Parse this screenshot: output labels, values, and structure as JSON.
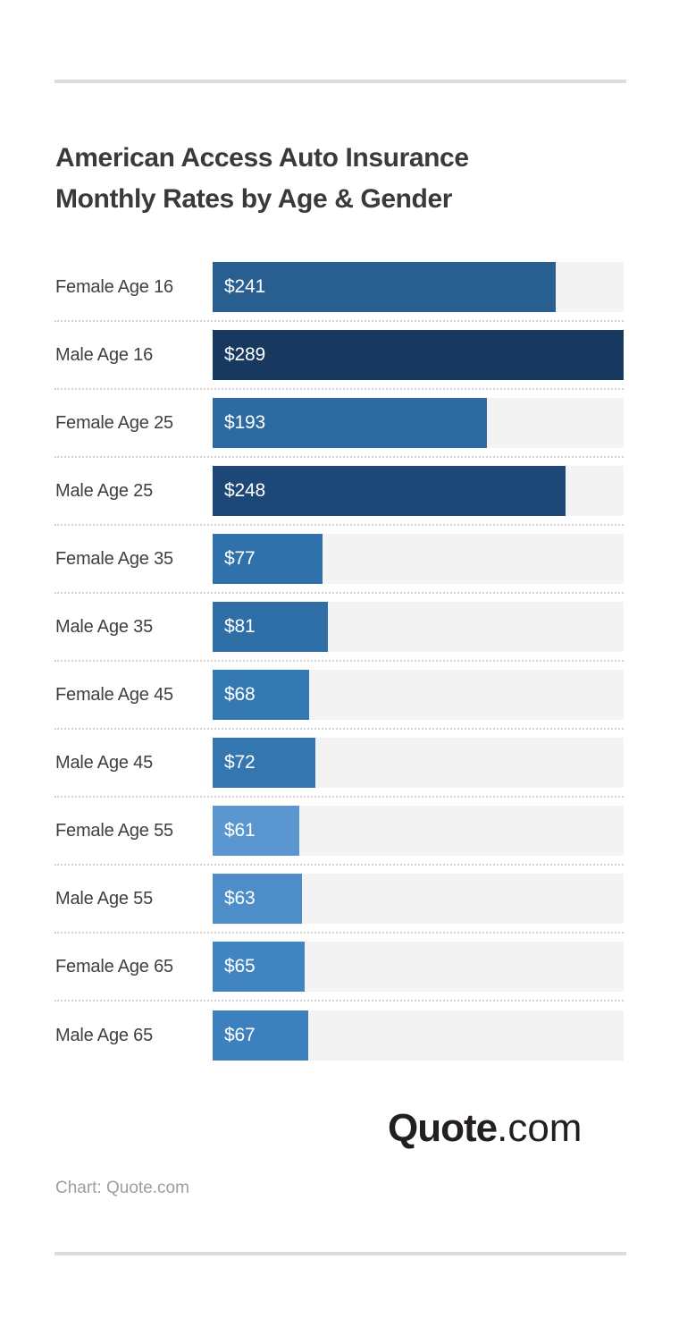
{
  "page": {
    "background": "#ffffff"
  },
  "header": {
    "title_line1": "American Access Auto Insurance",
    "title_line2": "Monthly Rates by Age & Gender",
    "title_color": "#3a3a3a",
    "divider_color": "#dcdcdc"
  },
  "chart_data": {
    "type": "bar",
    "orientation": "horizontal",
    "title": "American Access Auto Insurance Monthly Rates by Age & Gender",
    "categories": [
      "Female Age 16",
      "Male Age 16",
      "Female Age 25",
      "Male Age 25",
      "Female Age 35",
      "Male Age 35",
      "Female Age 45",
      "Male Age 45",
      "Female Age 55",
      "Male Age 55",
      "Female Age 65",
      "Male Age 65"
    ],
    "values": [
      241,
      289,
      193,
      248,
      77,
      81,
      68,
      72,
      61,
      63,
      65,
      67
    ],
    "value_labels": [
      "$241",
      "$289",
      "$193",
      "$248",
      "$77",
      "$81",
      "$68",
      "$72",
      "$61",
      "$63",
      "$65",
      "$67"
    ],
    "bar_colors": [
      "#295e91",
      "#17385f",
      "#2c6aa2",
      "#1d4777",
      "#2f72ab",
      "#2e6fa8",
      "#3579b3",
      "#3376b0",
      "#5a97d0",
      "#4d8dc8",
      "#4085c2",
      "#3c81bd"
    ],
    "xlabel": "",
    "ylabel": "",
    "xlim": [
      0,
      289
    ],
    "grid": false,
    "legend": false,
    "track_color": "#f3f3f3",
    "separator_color": "#d2d2d2",
    "label_color": "#3f3f3f",
    "value_label_color": "#ffffff",
    "unit": "USD per month"
  },
  "footer": {
    "logo_bold": "Quote",
    "logo_light": ".com",
    "logo_color": "#231f20",
    "attribution": "Chart: Quote.com",
    "attribution_color": "#9e9e9e",
    "divider_color": "#dcdcdc"
  }
}
